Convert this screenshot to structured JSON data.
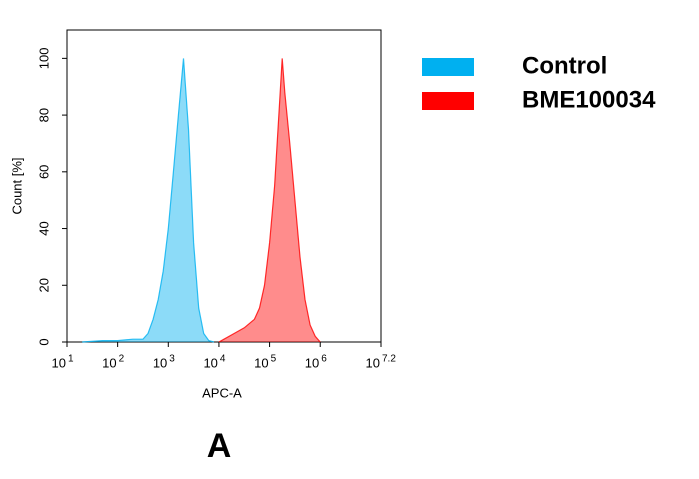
{
  "chart_data": {
    "type": "area",
    "x_label": "APC-A",
    "y_label": "Count [%]",
    "panel_label": "A",
    "x_scale": "log",
    "xlim": [
      10,
      15848931.92
    ],
    "xticks": [
      {
        "value": 10,
        "label": "10",
        "exponent": "1"
      },
      {
        "value": 100,
        "label": "10",
        "exponent": "2"
      },
      {
        "value": 1000,
        "label": "10",
        "exponent": "3"
      },
      {
        "value": 10000,
        "label": "10",
        "exponent": "4"
      },
      {
        "value": 100000,
        "label": "10",
        "exponent": "5"
      },
      {
        "value": 1000000,
        "label": "10",
        "exponent": "6"
      },
      {
        "value": 15848931.92,
        "label": "10",
        "exponent": "7.2"
      }
    ],
    "ylim": [
      0,
      110
    ],
    "yticks": [
      0,
      20,
      40,
      60,
      80,
      100
    ],
    "legend": "right",
    "series": [
      {
        "name": "Control",
        "color": "#00b0f0",
        "x": [
          20,
          50,
          100,
          200,
          316,
          398,
          501,
          631,
          794,
          1000,
          1259,
          1585,
          1995,
          2512,
          3162,
          3981,
          5012,
          6310,
          7943
        ],
        "values": [
          0,
          0.5,
          0.5,
          1,
          1,
          3,
          8,
          15,
          25,
          40,
          60,
          80,
          100,
          75,
          35,
          12,
          3,
          0.5,
          0
        ]
      },
      {
        "name": "BME100034",
        "color": "#ff0000",
        "x": [
          10000,
          12589,
          19953,
          31623,
          50119,
          63096,
          79433,
          100000,
          125893,
          158489,
          177828,
          199526,
          251189,
          316228,
          398107,
          501187,
          630957,
          794328,
          1000000
        ],
        "values": [
          0,
          1,
          3,
          5,
          8,
          12,
          20,
          35,
          55,
          85,
          100,
          88,
          70,
          50,
          30,
          15,
          6,
          2,
          0
        ]
      }
    ]
  }
}
